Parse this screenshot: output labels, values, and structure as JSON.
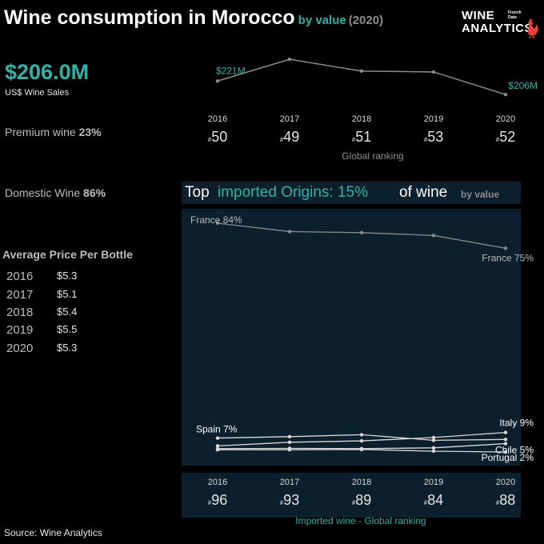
{
  "header": {
    "title": "Wine consumption in Morocco",
    "subtitle_metric": "by value",
    "subtitle_year": "(2020)"
  },
  "logo": {
    "line1": "WINE",
    "line2": "ANALYTICS",
    "small1": "French",
    "small2": "Data"
  },
  "kpi": {
    "value": "$206.0M",
    "label": "US$ Wine Sales"
  },
  "stats": {
    "premium_label": "Premium wine",
    "premium_value": "23%",
    "domestic_label": "Domestic Wine",
    "domestic_value": "86%"
  },
  "avg_price": {
    "title": "Average Price Per Bottle",
    "rows": [
      {
        "year": "2016",
        "price": "$5.3"
      },
      {
        "year": "2017",
        "price": "$5.1"
      },
      {
        "year": "2018",
        "price": "$5.4"
      },
      {
        "year": "2019",
        "price": "$5.5"
      },
      {
        "year": "2020",
        "price": "$5.3"
      }
    ]
  },
  "origins_title": {
    "a": "Top",
    "b": "imported Origins: 15%",
    "c": "of wine",
    "d": "by value"
  },
  "source": "Source: Wine Analytics",
  "colors": {
    "accent": "#2fb3a7",
    "panel": "#0b1f2d",
    "line": "#8c8c8c",
    "import_line": "#d9d9d9"
  },
  "chart_data": [
    {
      "type": "line",
      "title": "",
      "x": [
        "2016",
        "2017",
        "2018",
        "2019",
        "2020"
      ],
      "series": [
        {
          "values": [
            221,
            245,
            232,
            231,
            206
          ]
        }
      ],
      "unit": "US$ M",
      "labels": [
        {
          "index": 0,
          "text": "$221M"
        },
        {
          "index": 4,
          "text": "$206M"
        }
      ],
      "rankings_caption": "Global ranking",
      "rankings": [
        "#50",
        "#49",
        "#51",
        "#53",
        "#52"
      ]
    },
    {
      "type": "line",
      "x": [
        "2016",
        "2017",
        "2018",
        "2019",
        "2020"
      ],
      "series": [
        {
          "name": "France",
          "values": [
            84,
            81,
            80.6,
            79.6,
            75
          ],
          "start_label": "France 84%",
          "end_label": "France 75%"
        },
        {
          "name": "Spain",
          "values": [
            7,
            7.5,
            8.2,
            6.2,
            6.5
          ],
          "start_label": "Spain 7%"
        },
        {
          "name": "Italy",
          "values": [
            4.2,
            5.5,
            6,
            7.2,
            9
          ],
          "end_label": "Italy 9%"
        },
        {
          "name": "Chile",
          "values": [
            3.2,
            3.3,
            3.2,
            3.5,
            5
          ],
          "end_label": "Chile 5%"
        },
        {
          "name": "Portugal",
          "values": [
            2.8,
            2.8,
            2.9,
            2.3,
            2
          ],
          "end_label": "Portugal 2%"
        }
      ],
      "rankings_caption": "Imported wine - Global ranking",
      "rankings": [
        "#96",
        "#93",
        "#89",
        "#84",
        "#88"
      ]
    }
  ]
}
